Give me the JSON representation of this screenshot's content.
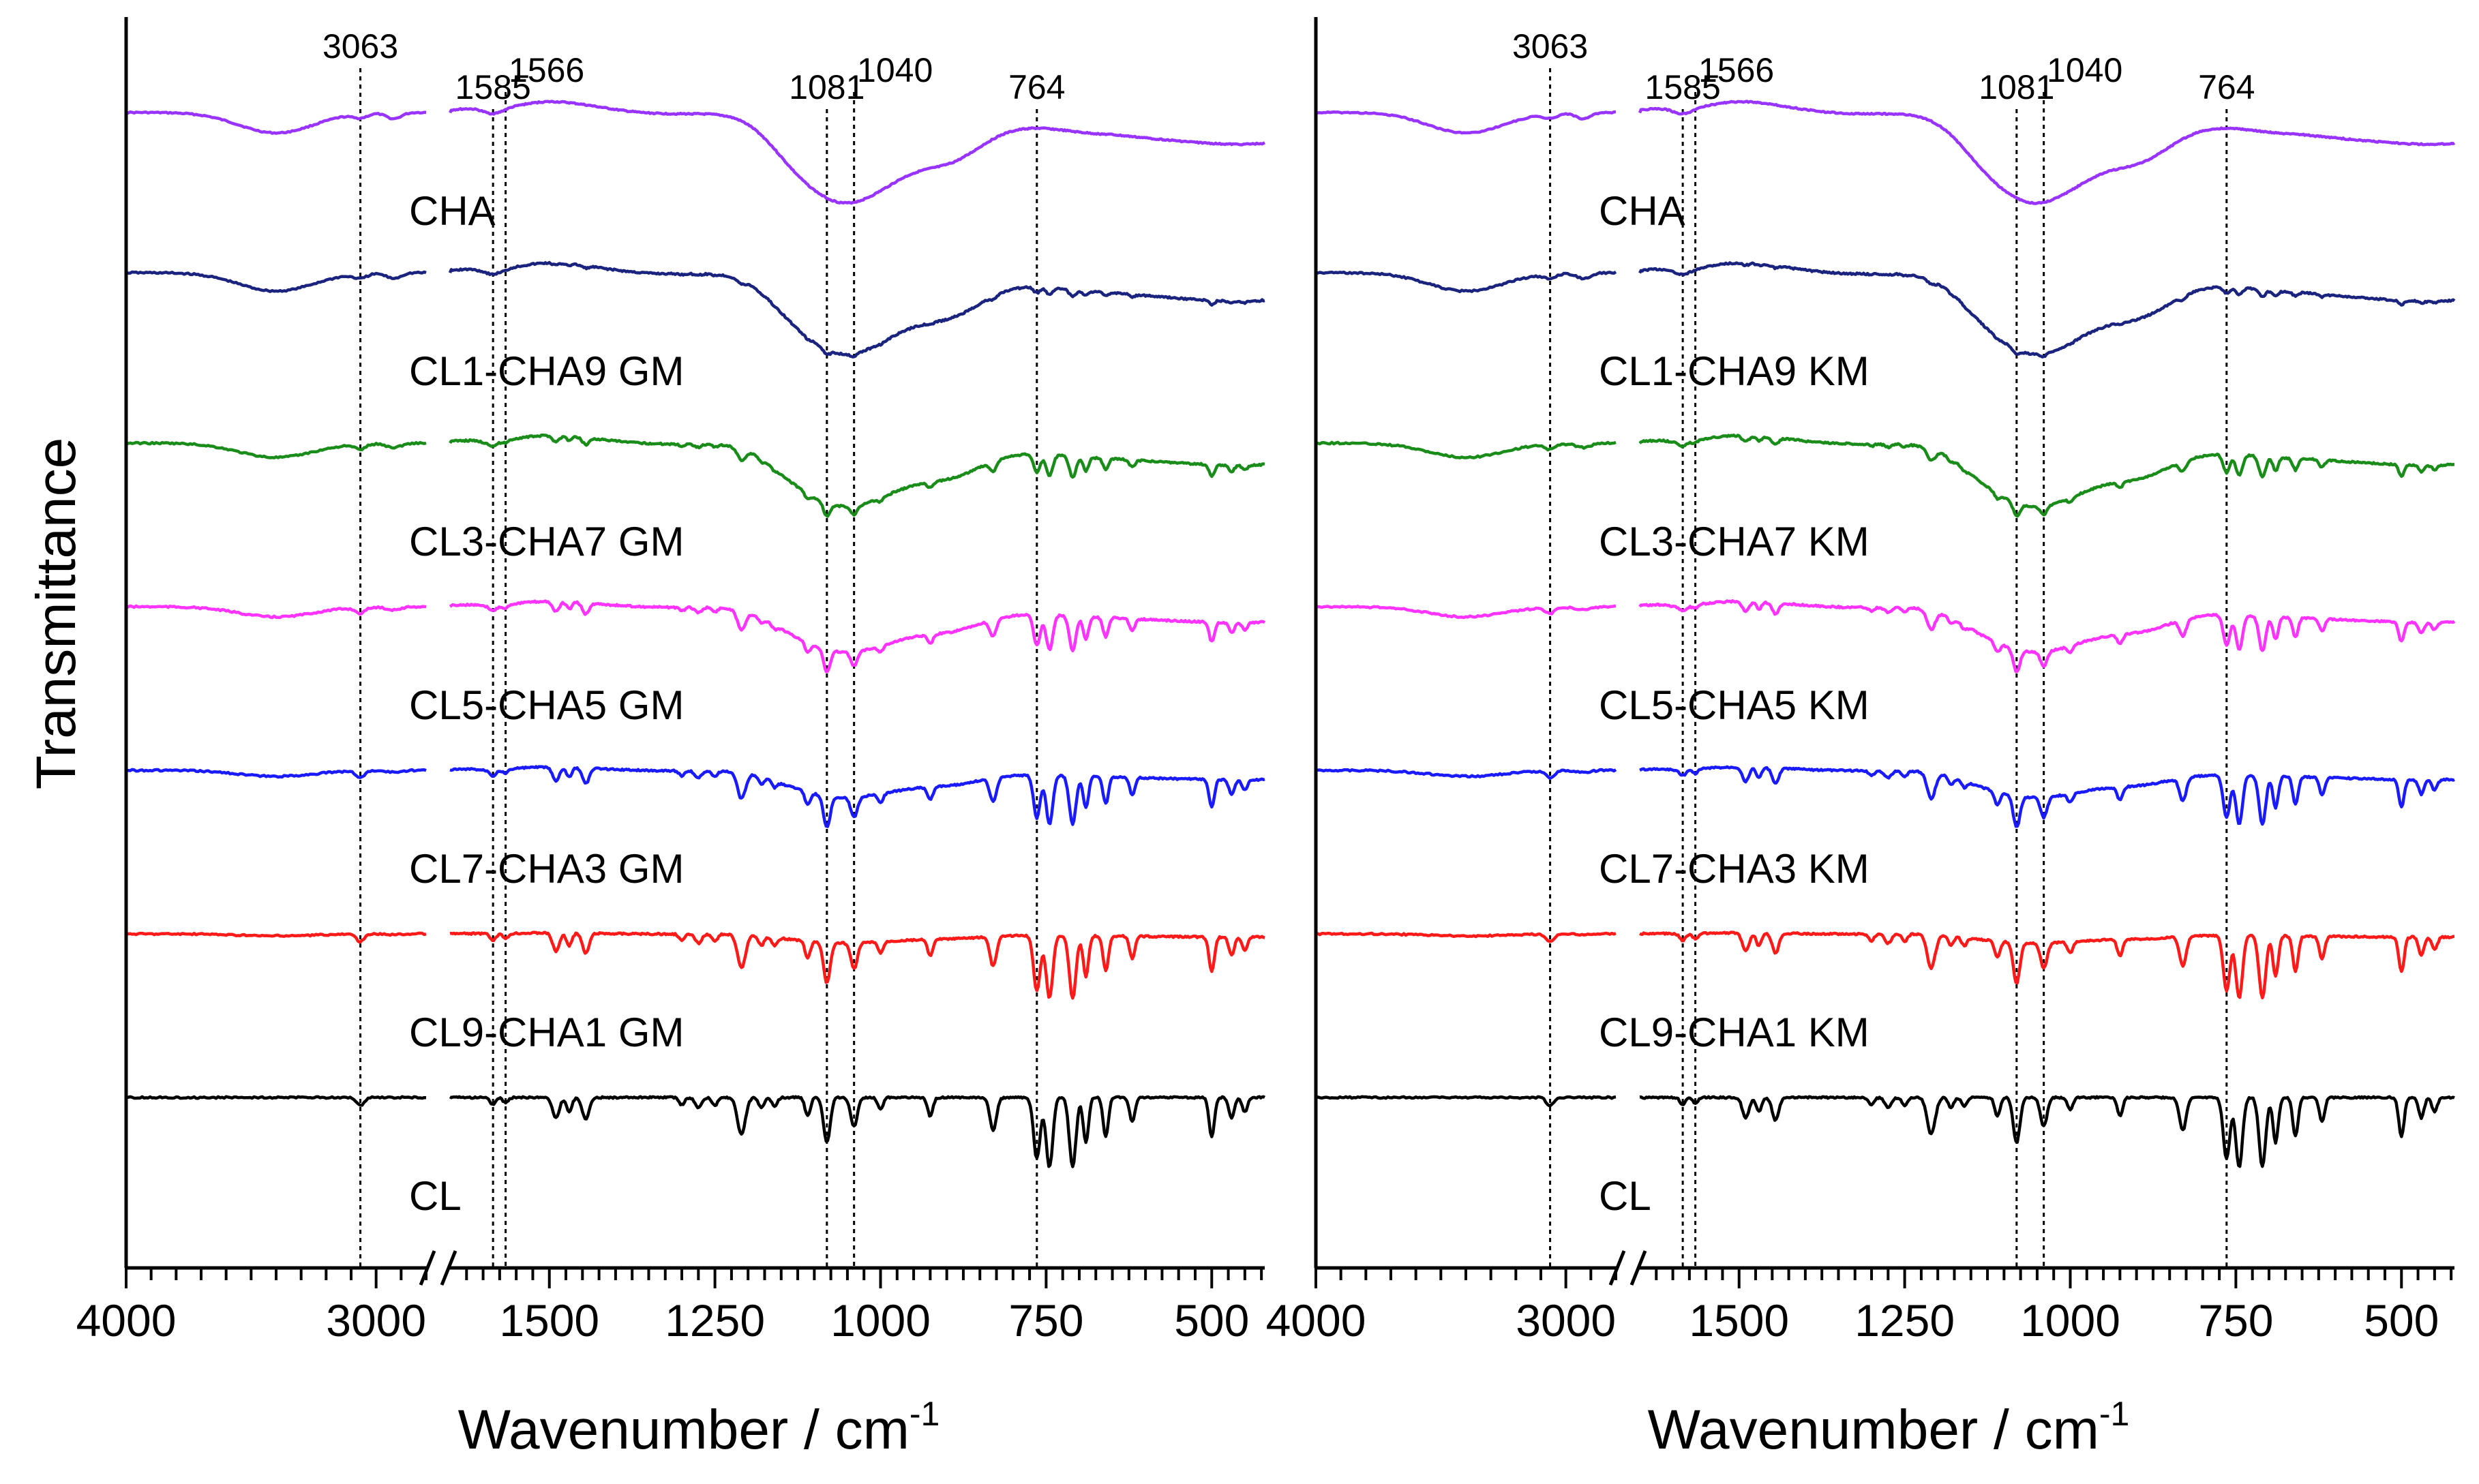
{
  "chart_data": [
    {
      "type": "line",
      "panel": "left",
      "xlabel": "Wavenumber / cm",
      "xlabel_superscript": "-1",
      "ylabel": "Transmittance",
      "x_axis_break": [
        2800,
        1650
      ],
      "xticks": [
        "4000",
        "3000",
        "1500",
        "1250",
        "1000",
        "750",
        "500"
      ],
      "reference_lines": [
        "3063",
        "1585",
        "1566",
        "1081",
        "1040",
        "764"
      ],
      "series": [
        {
          "name": "CHA",
          "label": "CHA",
          "color": "#9933ff"
        },
        {
          "name": "CL1-CHA9 GM",
          "label": "CL1-CHA9 GM",
          "color": "#1a237e"
        },
        {
          "name": "CL3-CHA7 GM",
          "label": "CL3-CHA7 GM",
          "color": "#1a8c1a"
        },
        {
          "name": "CL5-CHA5 GM",
          "label": "CL5-CHA5 GM",
          "color": "#ff33ff"
        },
        {
          "name": "CL7-CHA3 GM",
          "label": "CL7-CHA3 GM",
          "color": "#1a1aff"
        },
        {
          "name": "CL9-CHA1 GM",
          "label": "CL9-CHA1 GM",
          "color": "#ff1a1a"
        },
        {
          "name": "CL",
          "label": "CL",
          "color": "#000000"
        }
      ]
    },
    {
      "type": "line",
      "panel": "right",
      "xlabel": "Wavenumber / cm",
      "xlabel_superscript": "-1",
      "x_axis_break": [
        2800,
        1650
      ],
      "xticks": [
        "4000",
        "3000",
        "1500",
        "1250",
        "1000",
        "750",
        "500"
      ],
      "reference_lines": [
        "3063",
        "1585",
        "1566",
        "1081",
        "1040",
        "764"
      ],
      "series": [
        {
          "name": "CHA",
          "label": "CHA",
          "color": "#9933ff"
        },
        {
          "name": "CL1-CHA9 KM",
          "label": "CL1-CHA9 KM",
          "color": "#1a237e"
        },
        {
          "name": "CL3-CHA7 KM",
          "label": "CL3-CHA7 KM",
          "color": "#1a8c1a"
        },
        {
          "name": "CL5-CHA5 KM",
          "label": "CL5-CHA5 KM",
          "color": "#ff33ff"
        },
        {
          "name": "CL7-CHA3 KM",
          "label": "CL7-CHA3 KM",
          "color": "#1a1aff"
        },
        {
          "name": "CL9-CHA1 KM",
          "label": "CL9-CHA1 KM",
          "color": "#ff1a1a"
        },
        {
          "name": "CL",
          "label": "CL",
          "color": "#000000"
        }
      ]
    }
  ]
}
